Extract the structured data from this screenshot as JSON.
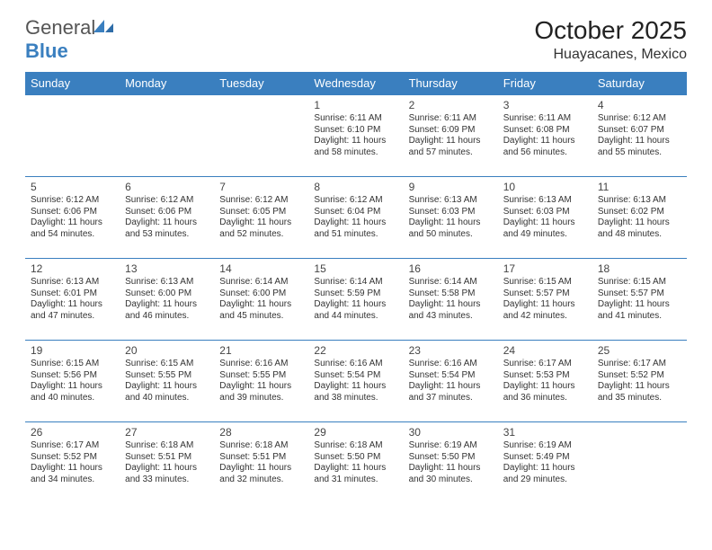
{
  "brand": {
    "part1": "General",
    "part2": "Blue"
  },
  "title": "October 2025",
  "location": "Huayacanes, Mexico",
  "colors": {
    "header_bg": "#3a7fbf",
    "header_text": "#ffffff",
    "rule": "#3a7fbf",
    "body_text": "#333333",
    "title_text": "#222222",
    "page_bg": "#ffffff"
  },
  "weekdays": [
    "Sunday",
    "Monday",
    "Tuesday",
    "Wednesday",
    "Thursday",
    "Friday",
    "Saturday"
  ],
  "weeks": [
    [
      null,
      null,
      null,
      {
        "n": "1",
        "sr": "Sunrise: 6:11 AM",
        "ss": "Sunset: 6:10 PM",
        "d1": "Daylight: 11 hours",
        "d2": "and 58 minutes."
      },
      {
        "n": "2",
        "sr": "Sunrise: 6:11 AM",
        "ss": "Sunset: 6:09 PM",
        "d1": "Daylight: 11 hours",
        "d2": "and 57 minutes."
      },
      {
        "n": "3",
        "sr": "Sunrise: 6:11 AM",
        "ss": "Sunset: 6:08 PM",
        "d1": "Daylight: 11 hours",
        "d2": "and 56 minutes."
      },
      {
        "n": "4",
        "sr": "Sunrise: 6:12 AM",
        "ss": "Sunset: 6:07 PM",
        "d1": "Daylight: 11 hours",
        "d2": "and 55 minutes."
      }
    ],
    [
      {
        "n": "5",
        "sr": "Sunrise: 6:12 AM",
        "ss": "Sunset: 6:06 PM",
        "d1": "Daylight: 11 hours",
        "d2": "and 54 minutes."
      },
      {
        "n": "6",
        "sr": "Sunrise: 6:12 AM",
        "ss": "Sunset: 6:06 PM",
        "d1": "Daylight: 11 hours",
        "d2": "and 53 minutes."
      },
      {
        "n": "7",
        "sr": "Sunrise: 6:12 AM",
        "ss": "Sunset: 6:05 PM",
        "d1": "Daylight: 11 hours",
        "d2": "and 52 minutes."
      },
      {
        "n": "8",
        "sr": "Sunrise: 6:12 AM",
        "ss": "Sunset: 6:04 PM",
        "d1": "Daylight: 11 hours",
        "d2": "and 51 minutes."
      },
      {
        "n": "9",
        "sr": "Sunrise: 6:13 AM",
        "ss": "Sunset: 6:03 PM",
        "d1": "Daylight: 11 hours",
        "d2": "and 50 minutes."
      },
      {
        "n": "10",
        "sr": "Sunrise: 6:13 AM",
        "ss": "Sunset: 6:03 PM",
        "d1": "Daylight: 11 hours",
        "d2": "and 49 minutes."
      },
      {
        "n": "11",
        "sr": "Sunrise: 6:13 AM",
        "ss": "Sunset: 6:02 PM",
        "d1": "Daylight: 11 hours",
        "d2": "and 48 minutes."
      }
    ],
    [
      {
        "n": "12",
        "sr": "Sunrise: 6:13 AM",
        "ss": "Sunset: 6:01 PM",
        "d1": "Daylight: 11 hours",
        "d2": "and 47 minutes."
      },
      {
        "n": "13",
        "sr": "Sunrise: 6:13 AM",
        "ss": "Sunset: 6:00 PM",
        "d1": "Daylight: 11 hours",
        "d2": "and 46 minutes."
      },
      {
        "n": "14",
        "sr": "Sunrise: 6:14 AM",
        "ss": "Sunset: 6:00 PM",
        "d1": "Daylight: 11 hours",
        "d2": "and 45 minutes."
      },
      {
        "n": "15",
        "sr": "Sunrise: 6:14 AM",
        "ss": "Sunset: 5:59 PM",
        "d1": "Daylight: 11 hours",
        "d2": "and 44 minutes."
      },
      {
        "n": "16",
        "sr": "Sunrise: 6:14 AM",
        "ss": "Sunset: 5:58 PM",
        "d1": "Daylight: 11 hours",
        "d2": "and 43 minutes."
      },
      {
        "n": "17",
        "sr": "Sunrise: 6:15 AM",
        "ss": "Sunset: 5:57 PM",
        "d1": "Daylight: 11 hours",
        "d2": "and 42 minutes."
      },
      {
        "n": "18",
        "sr": "Sunrise: 6:15 AM",
        "ss": "Sunset: 5:57 PM",
        "d1": "Daylight: 11 hours",
        "d2": "and 41 minutes."
      }
    ],
    [
      {
        "n": "19",
        "sr": "Sunrise: 6:15 AM",
        "ss": "Sunset: 5:56 PM",
        "d1": "Daylight: 11 hours",
        "d2": "and 40 minutes."
      },
      {
        "n": "20",
        "sr": "Sunrise: 6:15 AM",
        "ss": "Sunset: 5:55 PM",
        "d1": "Daylight: 11 hours",
        "d2": "and 40 minutes."
      },
      {
        "n": "21",
        "sr": "Sunrise: 6:16 AM",
        "ss": "Sunset: 5:55 PM",
        "d1": "Daylight: 11 hours",
        "d2": "and 39 minutes."
      },
      {
        "n": "22",
        "sr": "Sunrise: 6:16 AM",
        "ss": "Sunset: 5:54 PM",
        "d1": "Daylight: 11 hours",
        "d2": "and 38 minutes."
      },
      {
        "n": "23",
        "sr": "Sunrise: 6:16 AM",
        "ss": "Sunset: 5:54 PM",
        "d1": "Daylight: 11 hours",
        "d2": "and 37 minutes."
      },
      {
        "n": "24",
        "sr": "Sunrise: 6:17 AM",
        "ss": "Sunset: 5:53 PM",
        "d1": "Daylight: 11 hours",
        "d2": "and 36 minutes."
      },
      {
        "n": "25",
        "sr": "Sunrise: 6:17 AM",
        "ss": "Sunset: 5:52 PM",
        "d1": "Daylight: 11 hours",
        "d2": "and 35 minutes."
      }
    ],
    [
      {
        "n": "26",
        "sr": "Sunrise: 6:17 AM",
        "ss": "Sunset: 5:52 PM",
        "d1": "Daylight: 11 hours",
        "d2": "and 34 minutes."
      },
      {
        "n": "27",
        "sr": "Sunrise: 6:18 AM",
        "ss": "Sunset: 5:51 PM",
        "d1": "Daylight: 11 hours",
        "d2": "and 33 minutes."
      },
      {
        "n": "28",
        "sr": "Sunrise: 6:18 AM",
        "ss": "Sunset: 5:51 PM",
        "d1": "Daylight: 11 hours",
        "d2": "and 32 minutes."
      },
      {
        "n": "29",
        "sr": "Sunrise: 6:18 AM",
        "ss": "Sunset: 5:50 PM",
        "d1": "Daylight: 11 hours",
        "d2": "and 31 minutes."
      },
      {
        "n": "30",
        "sr": "Sunrise: 6:19 AM",
        "ss": "Sunset: 5:50 PM",
        "d1": "Daylight: 11 hours",
        "d2": "and 30 minutes."
      },
      {
        "n": "31",
        "sr": "Sunrise: 6:19 AM",
        "ss": "Sunset: 5:49 PM",
        "d1": "Daylight: 11 hours",
        "d2": "and 29 minutes."
      },
      null
    ]
  ]
}
